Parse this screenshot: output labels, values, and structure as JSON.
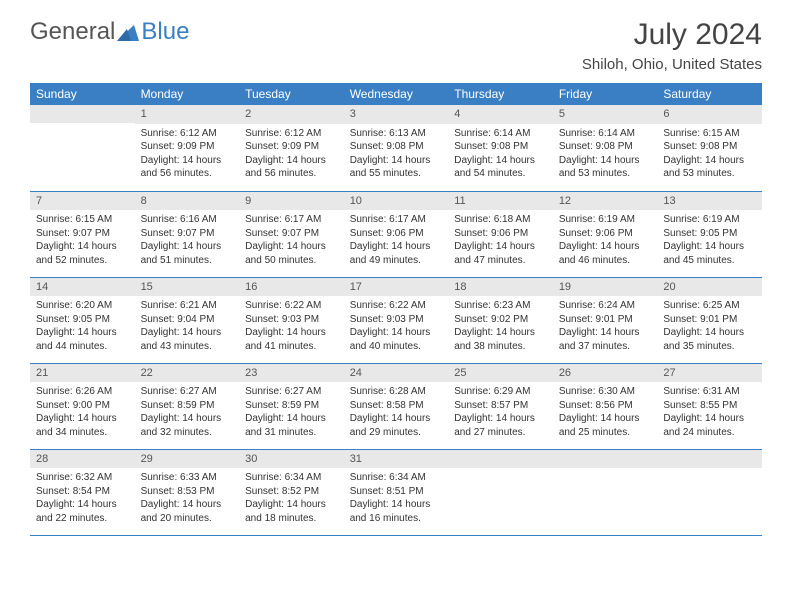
{
  "logo": {
    "part1": "General",
    "part2": "Blue"
  },
  "title": "July 2024",
  "location": "Shiloh, Ohio, United States",
  "colors": {
    "header_bg": "#3a7fc4",
    "daynum_bg": "#e8e8e8",
    "border": "#3a7fc4"
  },
  "dayHeaders": [
    "Sunday",
    "Monday",
    "Tuesday",
    "Wednesday",
    "Thursday",
    "Friday",
    "Saturday"
  ],
  "weeks": [
    [
      {
        "n": "",
        "sr": "",
        "ss": "",
        "dl": ""
      },
      {
        "n": "1",
        "sr": "6:12 AM",
        "ss": "9:09 PM",
        "dl": "14 hours and 56 minutes."
      },
      {
        "n": "2",
        "sr": "6:12 AM",
        "ss": "9:09 PM",
        "dl": "14 hours and 56 minutes."
      },
      {
        "n": "3",
        "sr": "6:13 AM",
        "ss": "9:08 PM",
        "dl": "14 hours and 55 minutes."
      },
      {
        "n": "4",
        "sr": "6:14 AM",
        "ss": "9:08 PM",
        "dl": "14 hours and 54 minutes."
      },
      {
        "n": "5",
        "sr": "6:14 AM",
        "ss": "9:08 PM",
        "dl": "14 hours and 53 minutes."
      },
      {
        "n": "6",
        "sr": "6:15 AM",
        "ss": "9:08 PM",
        "dl": "14 hours and 53 minutes."
      }
    ],
    [
      {
        "n": "7",
        "sr": "6:15 AM",
        "ss": "9:07 PM",
        "dl": "14 hours and 52 minutes."
      },
      {
        "n": "8",
        "sr": "6:16 AM",
        "ss": "9:07 PM",
        "dl": "14 hours and 51 minutes."
      },
      {
        "n": "9",
        "sr": "6:17 AM",
        "ss": "9:07 PM",
        "dl": "14 hours and 50 minutes."
      },
      {
        "n": "10",
        "sr": "6:17 AM",
        "ss": "9:06 PM",
        "dl": "14 hours and 49 minutes."
      },
      {
        "n": "11",
        "sr": "6:18 AM",
        "ss": "9:06 PM",
        "dl": "14 hours and 47 minutes."
      },
      {
        "n": "12",
        "sr": "6:19 AM",
        "ss": "9:06 PM",
        "dl": "14 hours and 46 minutes."
      },
      {
        "n": "13",
        "sr": "6:19 AM",
        "ss": "9:05 PM",
        "dl": "14 hours and 45 minutes."
      }
    ],
    [
      {
        "n": "14",
        "sr": "6:20 AM",
        "ss": "9:05 PM",
        "dl": "14 hours and 44 minutes."
      },
      {
        "n": "15",
        "sr": "6:21 AM",
        "ss": "9:04 PM",
        "dl": "14 hours and 43 minutes."
      },
      {
        "n": "16",
        "sr": "6:22 AM",
        "ss": "9:03 PM",
        "dl": "14 hours and 41 minutes."
      },
      {
        "n": "17",
        "sr": "6:22 AM",
        "ss": "9:03 PM",
        "dl": "14 hours and 40 minutes."
      },
      {
        "n": "18",
        "sr": "6:23 AM",
        "ss": "9:02 PM",
        "dl": "14 hours and 38 minutes."
      },
      {
        "n": "19",
        "sr": "6:24 AM",
        "ss": "9:01 PM",
        "dl": "14 hours and 37 minutes."
      },
      {
        "n": "20",
        "sr": "6:25 AM",
        "ss": "9:01 PM",
        "dl": "14 hours and 35 minutes."
      }
    ],
    [
      {
        "n": "21",
        "sr": "6:26 AM",
        "ss": "9:00 PM",
        "dl": "14 hours and 34 minutes."
      },
      {
        "n": "22",
        "sr": "6:27 AM",
        "ss": "8:59 PM",
        "dl": "14 hours and 32 minutes."
      },
      {
        "n": "23",
        "sr": "6:27 AM",
        "ss": "8:59 PM",
        "dl": "14 hours and 31 minutes."
      },
      {
        "n": "24",
        "sr": "6:28 AM",
        "ss": "8:58 PM",
        "dl": "14 hours and 29 minutes."
      },
      {
        "n": "25",
        "sr": "6:29 AM",
        "ss": "8:57 PM",
        "dl": "14 hours and 27 minutes."
      },
      {
        "n": "26",
        "sr": "6:30 AM",
        "ss": "8:56 PM",
        "dl": "14 hours and 25 minutes."
      },
      {
        "n": "27",
        "sr": "6:31 AM",
        "ss": "8:55 PM",
        "dl": "14 hours and 24 minutes."
      }
    ],
    [
      {
        "n": "28",
        "sr": "6:32 AM",
        "ss": "8:54 PM",
        "dl": "14 hours and 22 minutes."
      },
      {
        "n": "29",
        "sr": "6:33 AM",
        "ss": "8:53 PM",
        "dl": "14 hours and 20 minutes."
      },
      {
        "n": "30",
        "sr": "6:34 AM",
        "ss": "8:52 PM",
        "dl": "14 hours and 18 minutes."
      },
      {
        "n": "31",
        "sr": "6:34 AM",
        "ss": "8:51 PM",
        "dl": "14 hours and 16 minutes."
      },
      {
        "n": "",
        "sr": "",
        "ss": "",
        "dl": ""
      },
      {
        "n": "",
        "sr": "",
        "ss": "",
        "dl": ""
      },
      {
        "n": "",
        "sr": "",
        "ss": "",
        "dl": ""
      }
    ]
  ],
  "labels": {
    "sunrise": "Sunrise: ",
    "sunset": "Sunset: ",
    "daylight": "Daylight: "
  }
}
